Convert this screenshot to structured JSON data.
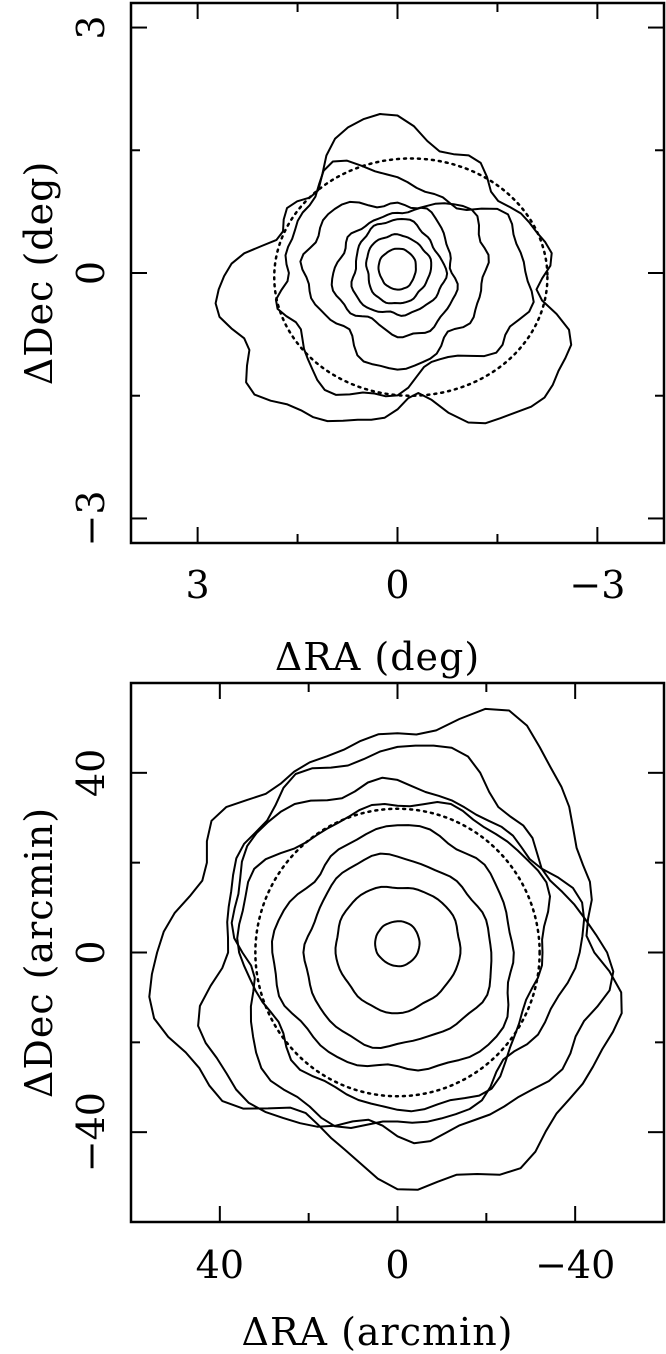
{
  "chart_data": [
    {
      "type": "contour",
      "xlabel": "ΔRA (deg)",
      "ylabel": "ΔDec (deg)",
      "xlim": [
        4.0,
        -4.0
      ],
      "ylim": [
        -3.3,
        3.3
      ],
      "x_ticks": [
        {
          "value": 3,
          "label": "3"
        },
        {
          "value": 0,
          "label": "0"
        },
        {
          "value": -3,
          "label": "−3"
        }
      ],
      "y_ticks": [
        {
          "value": 3,
          "label": "3"
        },
        {
          "value": 0,
          "label": "0"
        },
        {
          "value": -3,
          "label": "−3"
        }
      ],
      "contours_solid": [
        {
          "level": 1,
          "center": [
            0.0,
            0.05
          ],
          "rx": 0.28,
          "ry": 0.25
        },
        {
          "level": 2,
          "center": [
            0.0,
            0.05
          ],
          "rx": 0.48,
          "ry": 0.42
        },
        {
          "level": 3,
          "center": [
            0.0,
            0.05
          ],
          "rx": 0.68,
          "ry": 0.58
        },
        {
          "level": 4,
          "center": [
            0.0,
            0.0
          ],
          "rx": 0.9,
          "ry": 0.75
        },
        {
          "level": 5,
          "center": [
            0.0,
            -0.05
          ],
          "rx": 1.35,
          "ry": 1.0
        },
        {
          "level": 6,
          "center": [
            0.0,
            -0.1
          ],
          "rx": 1.85,
          "ry": 1.3
        },
        {
          "level": 7,
          "center": [
            0.0,
            -0.2
          ],
          "rx": 2.45,
          "ry": 1.75
        }
      ],
      "contour_dotted": {
        "center": [
          -0.2,
          -0.05
        ],
        "rx": 2.05,
        "ry": 1.45
      }
    },
    {
      "type": "contour",
      "xlabel": "ΔRA (arcmin)",
      "ylabel": "ΔDec (arcmin)",
      "xlim": [
        60,
        -60
      ],
      "ylim": [
        -60,
        60
      ],
      "x_ticks": [
        {
          "value": 40,
          "label": "40"
        },
        {
          "value": 0,
          "label": "0"
        },
        {
          "value": -40,
          "label": "−40"
        }
      ],
      "y_ticks": [
        {
          "value": 40,
          "label": "40"
        },
        {
          "value": 0,
          "label": "0"
        },
        {
          "value": -40,
          "label": "−40"
        }
      ],
      "contours_solid": [
        {
          "level": 1,
          "center": [
            0,
            2
          ],
          "r": 5
        },
        {
          "level": 2,
          "center": [
            0,
            1
          ],
          "r": 14
        },
        {
          "level": 3,
          "center": [
            0,
            0
          ],
          "r": 21
        },
        {
          "level": 4,
          "center": [
            0,
            0
          ],
          "r": 27
        },
        {
          "level": 5,
          "center": [
            0,
            0
          ],
          "r": 34
        },
        {
          "level": 6,
          "center": [
            0,
            0
          ],
          "r": 38
        },
        {
          "level": 7,
          "center": [
            0,
            0
          ],
          "r": 43
        },
        {
          "level": 8,
          "center": [
            0,
            0
          ],
          "r": 50
        }
      ],
      "contour_dotted": {
        "center": [
          0,
          0
        ],
        "r": 32
      }
    }
  ]
}
